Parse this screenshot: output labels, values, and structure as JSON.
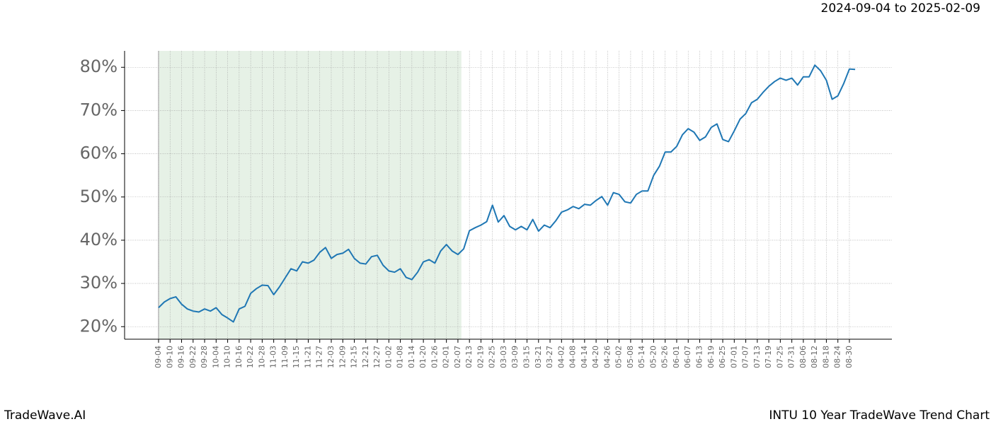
{
  "chart_data": {
    "type": "line",
    "date_range": "2024-09-04 to 2025-02-09",
    "brand": "TradeWave.AI",
    "title": "INTU 10 Year TradeWave Trend Chart",
    "categories": [
      "09-04",
      null,
      "09-10",
      null,
      "09-16",
      null,
      "09-22",
      null,
      "09-28",
      null,
      "10-04",
      null,
      "10-10",
      null,
      "10-16",
      null,
      "10-22",
      null,
      "10-28",
      null,
      "11-03",
      null,
      "11-09",
      null,
      "11-15",
      null,
      "11-21",
      null,
      "11-27",
      null,
      "12-03",
      null,
      "12-09",
      null,
      "12-15",
      null,
      "12-21",
      null,
      "12-27",
      null,
      "01-02",
      null,
      "01-08",
      null,
      "01-14",
      null,
      "01-20",
      null,
      "01-26",
      null,
      "02-01",
      null,
      "02-07",
      null,
      "02-13",
      null,
      "02-19",
      null,
      "02-25",
      null,
      "03-03",
      null,
      "03-09",
      null,
      "03-15",
      null,
      "03-21",
      null,
      "03-27",
      null,
      "04-02",
      null,
      "04-08",
      null,
      "04-14",
      null,
      "04-20",
      null,
      "04-26",
      null,
      "05-02",
      null,
      "05-08",
      null,
      "05-14",
      null,
      "05-20",
      null,
      "05-26",
      null,
      "06-01",
      null,
      "06-07",
      null,
      "06-13",
      null,
      "06-19",
      null,
      "06-25",
      null,
      "07-01",
      null,
      "07-07",
      null,
      "07-13",
      null,
      "07-19",
      null,
      "07-25",
      null,
      "07-31",
      null,
      "08-06",
      null,
      "08-12",
      null,
      "08-18",
      null,
      "08-24",
      null,
      "08-30",
      null
    ],
    "series": [
      {
        "color": "#1f77b4",
        "values": [
          24.4,
          25.7,
          26.5,
          26.9,
          25.2,
          24.1,
          23.6,
          23.4,
          24.1,
          23.6,
          24.4,
          22.8,
          22.0,
          21.1,
          24.1,
          24.7,
          27.7,
          28.8,
          29.6,
          29.5,
          27.4,
          29.2,
          31.3,
          33.4,
          32.9,
          35.0,
          34.7,
          35.4,
          37.2,
          38.3,
          35.8,
          36.7,
          37.0,
          37.9,
          35.8,
          34.7,
          34.5,
          36.2,
          36.5,
          34.2,
          32.9,
          32.6,
          33.4,
          31.4,
          30.9,
          32.6,
          35.0,
          35.5,
          34.7,
          37.5,
          39.0,
          37.5,
          36.7,
          38.0,
          42.2,
          42.9,
          43.5,
          44.3,
          48.1,
          44.2,
          45.7,
          43.2,
          42.4,
          43.2,
          42.4,
          44.8,
          42.1,
          43.5,
          42.9,
          44.5,
          46.5,
          47.0,
          47.8,
          47.3,
          48.3,
          48.1,
          49.2,
          50.1,
          48.1,
          51.0,
          50.6,
          48.9,
          48.6,
          50.6,
          51.4,
          51.4,
          55.0,
          57.1,
          60.4,
          60.4,
          61.7,
          64.4,
          65.8,
          65.0,
          63.1,
          63.9,
          66.1,
          66.9,
          63.3,
          62.8,
          65.3,
          68.0,
          69.3,
          71.8,
          72.6,
          74.2,
          75.6,
          76.7,
          77.5,
          77.0,
          77.5,
          75.9,
          77.8,
          77.8,
          80.5,
          79.2,
          77.0,
          72.6,
          73.4,
          76.2,
          79.6,
          79.5
        ]
      }
    ],
    "highlight_x": [
      0,
      52.6
    ],
    "highlight_color": "#e6f1e6",
    "ylim": [
      17.1,
      83.8
    ],
    "yticks": [
      {
        "value": 20,
        "label": "20%"
      },
      {
        "value": 30,
        "label": "30%"
      },
      {
        "value": 40,
        "label": "40%"
      },
      {
        "value": 50,
        "label": "50%"
      },
      {
        "value": 60,
        "label": "60%"
      },
      {
        "value": 70,
        "label": "70%"
      },
      {
        "value": 80,
        "label": "80%"
      }
    ],
    "grid": true
  }
}
